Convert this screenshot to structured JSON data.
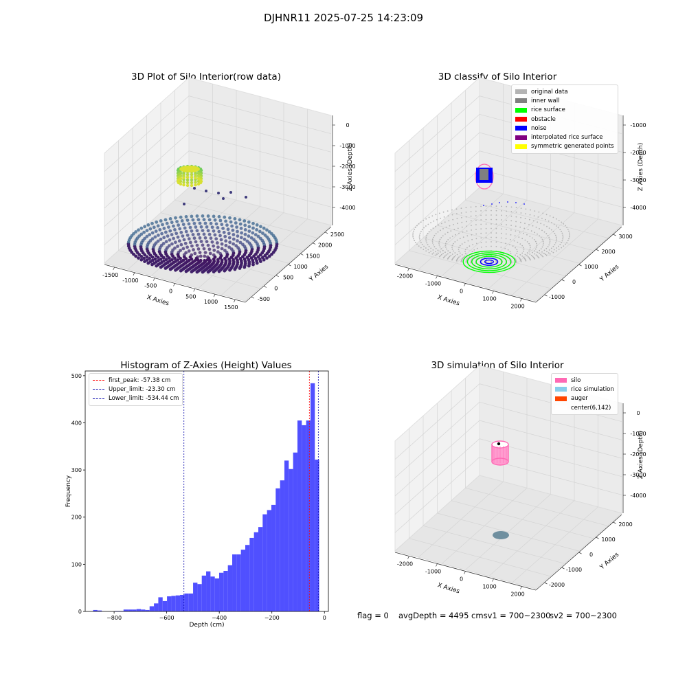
{
  "figure": {
    "suptitle": "DJHNR11 2025-07-25 14:23:09",
    "status": {
      "flag": "flag = 0",
      "avg": "avgDepth = 4495 cmsv1 = 700~2300",
      "sv2": "sv2 = 700~2300"
    }
  },
  "chart_data": [
    {
      "type": "scatter",
      "title": "3D Plot of Silo Interior(row data)",
      "xlabel": "X Axies",
      "ylabel": "Y Axies",
      "zlabel": "Z Axies (Depth)",
      "x_ticks": [
        "-1500",
        "-1000",
        "-500",
        "0",
        "500",
        "1000",
        "1500"
      ],
      "y_ticks": [
        "-500",
        "0",
        "500",
        "1000",
        "1500",
        "2000",
        "2500"
      ],
      "z_ticks": [
        "0",
        "-1000",
        "-2000",
        "-3000",
        "-4000"
      ],
      "colormap": [
        "#440154",
        "#21918c",
        "#fde725"
      ]
    },
    {
      "type": "scatter",
      "title": "3D classify of Silo Interior",
      "xlabel": "X Axies",
      "ylabel": "Y Axies",
      "zlabel": "Z Axies (Depth)",
      "x_ticks": [
        "-2000",
        "-1000",
        "0",
        "1000",
        "2000"
      ],
      "y_ticks": [
        "-1000",
        "0",
        "1000",
        "2000",
        "3000"
      ],
      "z_ticks": [
        "-1000",
        "-2000",
        "-3000",
        "-4000"
      ],
      "legend": [
        {
          "label": "original data",
          "color": "#b3b3b3"
        },
        {
          "label": "inner wall",
          "color": "#808080"
        },
        {
          "label": "rice surface",
          "color": "#00ff00"
        },
        {
          "label": "obstacle",
          "color": "#ff0000"
        },
        {
          "label": "noise",
          "color": "#0000ff"
        },
        {
          "label": "interpolated rice surface",
          "color": "#800080"
        },
        {
          "label": "symmetric generated points",
          "color": "#ffff00"
        }
      ]
    },
    {
      "type": "bar",
      "title": "Histogram of Z-Axies (Height) Values",
      "xlabel": "Depth (cm)",
      "ylabel": "Frequency",
      "xlim": [
        -910,
        15
      ],
      "ylim": [
        0,
        510
      ],
      "x_ticks": [
        -800,
        -600,
        -400,
        -200,
        0
      ],
      "y_ticks": [
        0,
        100,
        200,
        300,
        400,
        500
      ],
      "bar_color": "#5050ff",
      "bins": [
        {
          "x0": -880,
          "x1": -865,
          "count": 3
        },
        {
          "x0": -865,
          "x1": -850,
          "count": 2
        },
        {
          "x0": -850,
          "x1": -835,
          "count": 0
        },
        {
          "x0": -835,
          "x1": -820,
          "count": 0
        },
        {
          "x0": -820,
          "x1": -805,
          "count": 0
        },
        {
          "x0": -805,
          "x1": -790,
          "count": 1
        },
        {
          "x0": -790,
          "x1": -775,
          "count": 1
        },
        {
          "x0": -775,
          "x1": -760,
          "count": 4
        },
        {
          "x0": -760,
          "x1": -745,
          "count": 4
        },
        {
          "x0": -745,
          "x1": -730,
          "count": 4
        },
        {
          "x0": -730,
          "x1": -715,
          "count": 5
        },
        {
          "x0": -715,
          "x1": -700,
          "count": 4
        },
        {
          "x0": -700,
          "x1": -685,
          "count": 3
        },
        {
          "x0": -685,
          "x1": -670,
          "count": 11
        },
        {
          "x0": -670,
          "x1": -655,
          "count": 17
        },
        {
          "x0": -655,
          "x1": -640,
          "count": 30
        },
        {
          "x0": -640,
          "x1": -625,
          "count": 22
        },
        {
          "x0": -625,
          "x1": -610,
          "count": 32
        },
        {
          "x0": -610,
          "x1": -595,
          "count": 33
        },
        {
          "x0": -595,
          "x1": -580,
          "count": 34
        },
        {
          "x0": -580,
          "x1": -565,
          "count": 35
        },
        {
          "x0": -565,
          "x1": -550,
          "count": 38
        },
        {
          "x0": -550,
          "x1": -535,
          "count": 38
        },
        {
          "x0": -535,
          "x1": -520,
          "count": 61
        },
        {
          "x0": -520,
          "x1": -505,
          "count": 58
        },
        {
          "x0": -505,
          "x1": -490,
          "count": 76
        },
        {
          "x0": -490,
          "x1": -475,
          "count": 85
        },
        {
          "x0": -475,
          "x1": -460,
          "count": 74
        },
        {
          "x0": -460,
          "x1": -445,
          "count": 70
        },
        {
          "x0": -445,
          "x1": -430,
          "count": 82
        },
        {
          "x0": -430,
          "x1": -415,
          "count": 86
        },
        {
          "x0": -415,
          "x1": -400,
          "count": 98
        },
        {
          "x0": -400,
          "x1": -385,
          "count": 121
        },
        {
          "x0": -385,
          "x1": -370,
          "count": 121
        },
        {
          "x0": -370,
          "x1": -355,
          "count": 131
        },
        {
          "x0": -355,
          "x1": -340,
          "count": 141
        },
        {
          "x0": -340,
          "x1": -325,
          "count": 156
        },
        {
          "x0": -325,
          "x1": -310,
          "count": 168
        },
        {
          "x0": -310,
          "x1": -295,
          "count": 179
        },
        {
          "x0": -295,
          "x1": -280,
          "count": 206
        },
        {
          "x0": -280,
          "x1": -265,
          "count": 215
        },
        {
          "x0": -265,
          "x1": -250,
          "count": 226
        },
        {
          "x0": -250,
          "x1": -235,
          "count": 261
        },
        {
          "x0": -235,
          "x1": -220,
          "count": 278
        },
        {
          "x0": -220,
          "x1": -205,
          "count": 320
        },
        {
          "x0": -205,
          "x1": -190,
          "count": 302
        },
        {
          "x0": -190,
          "x1": -175,
          "count": 337
        },
        {
          "x0": -175,
          "x1": -160,
          "count": 405
        },
        {
          "x0": -160,
          "x1": -145,
          "count": 395
        },
        {
          "x0": -145,
          "x1": -130,
          "count": 405
        },
        {
          "x0": -130,
          "x1": -115,
          "count": 484
        },
        {
          "x0": -115,
          "x1": -100,
          "count": 322
        }
      ],
      "vlines": [
        {
          "label": "first_peak: -57.38 cm",
          "x": -57.38,
          "color": "#ff0000"
        },
        {
          "label": "Upper_limit: -23.30 cm",
          "x": -23.3,
          "color": "#0000aa"
        },
        {
          "label": "Lower_limit: -534.44 cm",
          "x": -534.44,
          "color": "#0000aa"
        }
      ]
    },
    {
      "type": "scatter",
      "title": "3D simulation of Silo Interior",
      "xlabel": "X Axies",
      "ylabel": "Y Axies",
      "zlabel": "Z Axies (Depth)",
      "x_ticks": [
        "-2000",
        "-1000",
        "0",
        "1000",
        "2000"
      ],
      "y_ticks": [
        "-2000",
        "-1000",
        "0",
        "1000",
        "2000"
      ],
      "z_ticks": [
        "0",
        "-1000",
        "-2000",
        "-3000",
        "-4000"
      ],
      "legend": [
        {
          "label": "silo",
          "color": "#ff69b4"
        },
        {
          "label": "rice simulation",
          "color": "#87ceeb"
        },
        {
          "label": "auger",
          "color": "#ff4500"
        },
        {
          "label": "center(6,142)",
          "color": "#ffffff"
        }
      ]
    }
  ]
}
